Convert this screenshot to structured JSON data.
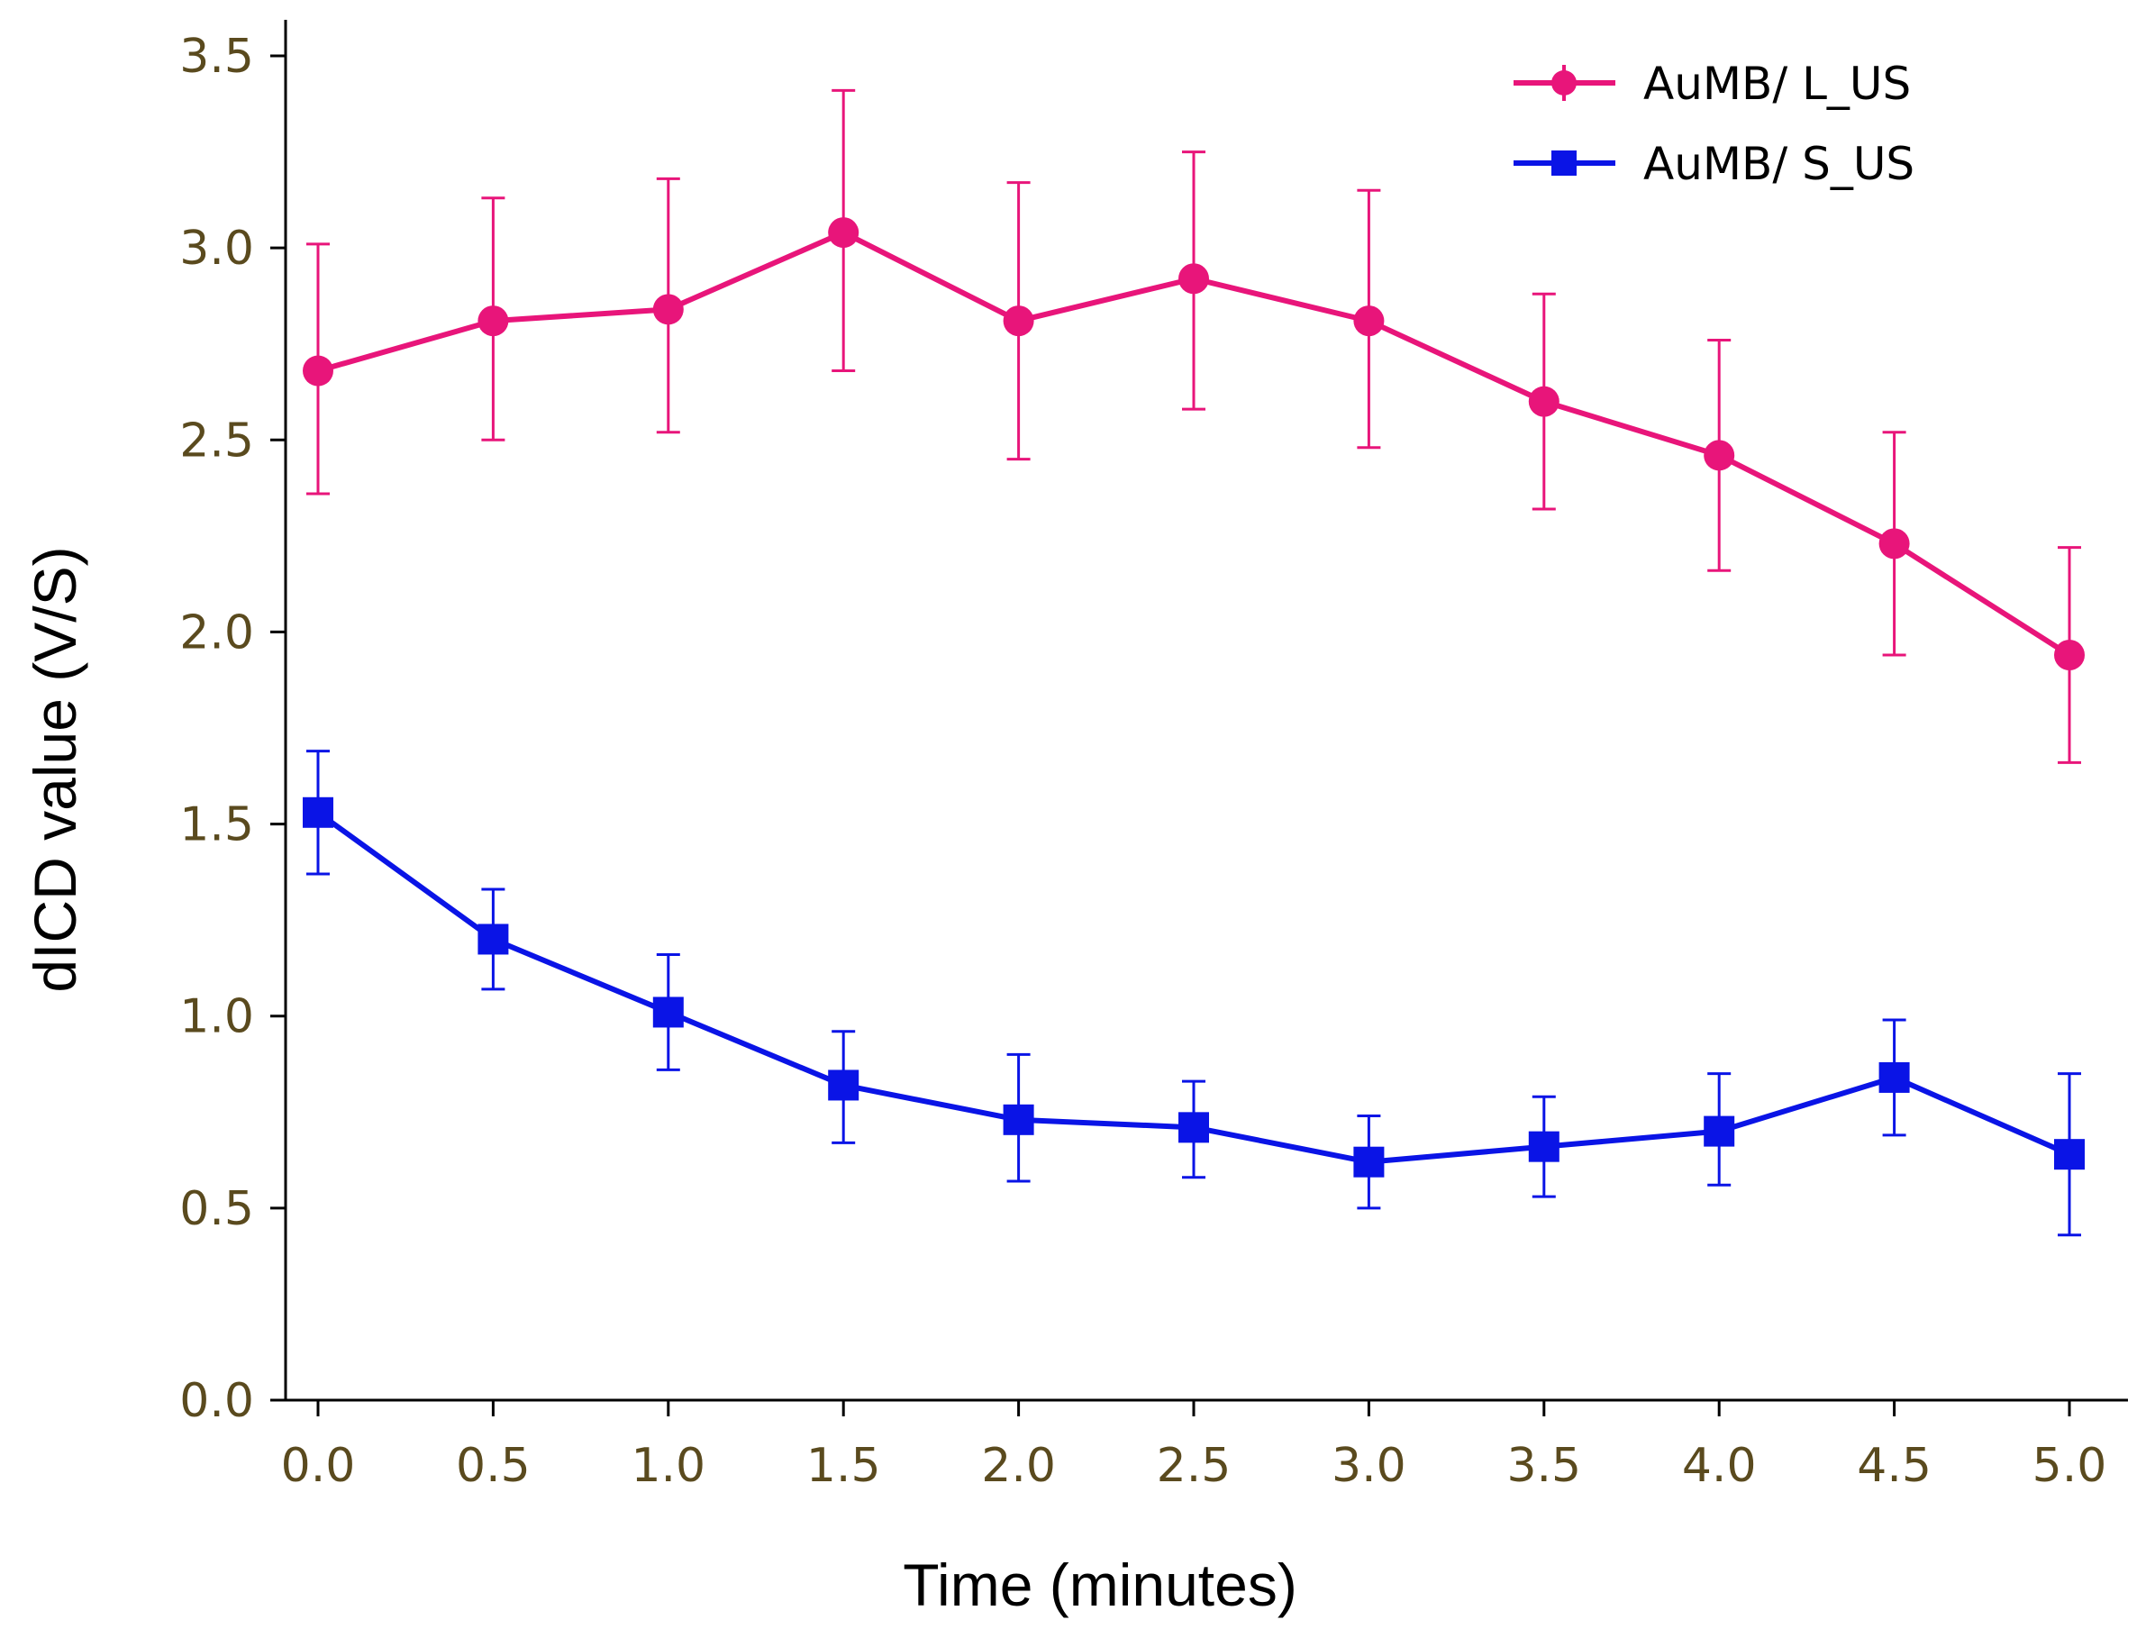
{
  "chart_data": {
    "type": "line",
    "title": "",
    "xlabel": "Time (minutes)",
    "ylabel": "dICD value (V/S)",
    "xlim": [
      -0.1,
      5.1
    ],
    "ylim": [
      0.0,
      3.6
    ],
    "x_ticks": [
      "0.0",
      "0.5",
      "1.0",
      "1.5",
      "2.0",
      "2.5",
      "3.0",
      "3.5",
      "4.0",
      "4.5",
      "5.0"
    ],
    "y_ticks": [
      "0.0",
      "0.5",
      "1.0",
      "1.5",
      "2.0",
      "2.5",
      "3.0",
      "3.5"
    ],
    "grid": false,
    "legend_position": "top-right",
    "x": [
      0.0,
      0.5,
      1.0,
      1.5,
      2.0,
      2.5,
      3.0,
      3.5,
      4.0,
      4.5,
      5.0
    ],
    "series": [
      {
        "name": "AuMB/ L_US",
        "marker": "circle",
        "color": "#e8157a",
        "values": [
          2.68,
          2.81,
          2.84,
          3.04,
          2.81,
          2.92,
          2.81,
          2.6,
          2.46,
          2.23,
          1.94
        ],
        "err_low": [
          2.36,
          2.5,
          2.52,
          2.68,
          2.45,
          2.58,
          2.48,
          2.32,
          2.16,
          1.94,
          1.66
        ],
        "err_high": [
          3.01,
          3.13,
          3.18,
          3.41,
          3.17,
          3.25,
          3.15,
          2.88,
          2.76,
          2.52,
          2.22
        ]
      },
      {
        "name": "AuMB/ S_US",
        "marker": "square",
        "color": "#0a14e6",
        "values": [
          1.53,
          1.2,
          1.01,
          0.82,
          0.73,
          0.71,
          0.62,
          0.66,
          0.7,
          0.84,
          0.64
        ],
        "err_low": [
          1.37,
          1.07,
          0.86,
          0.67,
          0.57,
          0.58,
          0.5,
          0.53,
          0.56,
          0.69,
          0.43
        ],
        "err_high": [
          1.69,
          1.33,
          1.16,
          0.96,
          0.9,
          0.83,
          0.74,
          0.79,
          0.85,
          0.99,
          0.85
        ]
      }
    ]
  }
}
